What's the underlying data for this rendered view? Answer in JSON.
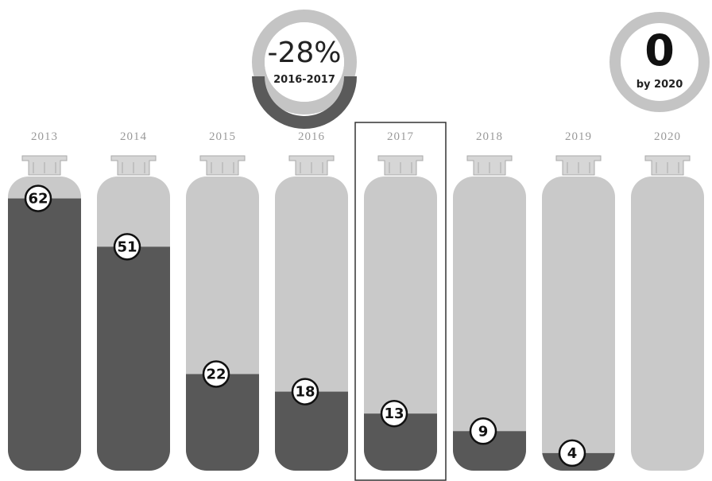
{
  "chart_data": {
    "type": "cylinder",
    "categories": [
      "2013",
      "2014",
      "2015",
      "2016",
      "2017",
      "2018",
      "2019",
      "2020"
    ],
    "values": [
      62,
      51,
      22,
      18,
      13,
      9,
      4,
      0
    ],
    "ylim": [
      0,
      67
    ],
    "color": "#585858",
    "empty_color": "#c9c9c9",
    "highlight": "2017",
    "badges": [
      {
        "value": "-28%",
        "caption": "2016-2017"
      },
      {
        "value": "0",
        "caption": "by 2020"
      }
    ]
  }
}
